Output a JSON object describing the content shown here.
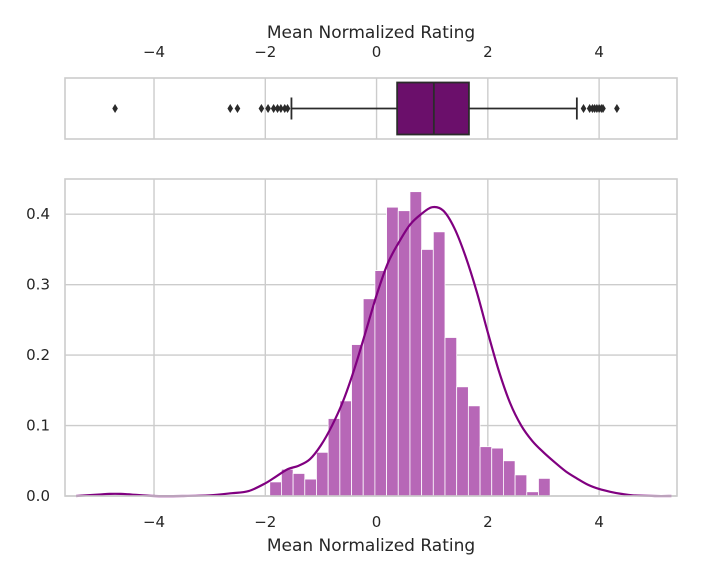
{
  "chart_data": [
    {
      "type": "box",
      "xlabel": "Mean Normalized Rating",
      "xlim": [
        -5.6,
        5.4
      ],
      "xticks": [
        -4,
        -2,
        0,
        2,
        4
      ],
      "xtick_labels": [
        "−4",
        "−2",
        "0",
        "2",
        "4"
      ],
      "grid": true,
      "box": {
        "q1": 0.37,
        "median": 1.03,
        "q3": 1.66,
        "whisker_low": -1.53,
        "whisker_high": 3.6
      },
      "outliers": [
        -4.7,
        -2.63,
        -2.5,
        -2.07,
        -1.95,
        -1.85,
        -1.78,
        -1.72,
        -1.65,
        -1.6,
        3.72,
        3.83,
        3.88,
        3.92,
        3.96,
        4.0,
        4.04,
        4.07,
        4.32
      ],
      "colors": {
        "box": "#6b0f6b",
        "edge": "#2b2b2b"
      }
    },
    {
      "type": "histogram",
      "xlabel": "Mean Normalized Rating",
      "xlim": [
        -5.6,
        5.4
      ],
      "ylim": [
        0,
        0.45
      ],
      "xticks": [
        -4,
        -2,
        0,
        2,
        4
      ],
      "xtick_labels": [
        "−4",
        "−2",
        "0",
        "2",
        "4"
      ],
      "yticks": [
        0.0,
        0.1,
        0.2,
        0.3,
        0.4
      ],
      "ytick_labels": [
        "0.0",
        "0.1",
        "0.2",
        "0.3",
        "0.4"
      ],
      "grid": true,
      "bin_start": -1.92,
      "bin_width": 0.21,
      "values": [
        0.02,
        0.038,
        0.032,
        0.024,
        0.062,
        0.11,
        0.135,
        0.215,
        0.28,
        0.32,
        0.41,
        0.405,
        0.432,
        0.35,
        0.375,
        0.225,
        0.155,
        0.128,
        0.07,
        0.068,
        0.05,
        0.03,
        0.006,
        0.025
      ],
      "kde_x": [
        -5.4,
        -5.0,
        -4.8,
        -4.6,
        -4.4,
        -4.0,
        -3.5,
        -3.0,
        -2.6,
        -2.3,
        -2.0,
        -1.8,
        -1.6,
        -1.4,
        -1.2,
        -1.0,
        -0.8,
        -0.6,
        -0.4,
        -0.2,
        0.0,
        0.2,
        0.4,
        0.6,
        0.8,
        1.0,
        1.2,
        1.4,
        1.6,
        1.8,
        2.0,
        2.2,
        2.4,
        2.6,
        2.8,
        3.0,
        3.2,
        3.4,
        3.6,
        3.8,
        4.0,
        4.2,
        4.4,
        4.6,
        5.0,
        5.3
      ],
      "kde_y": [
        0.0,
        0.002,
        0.003,
        0.003,
        0.002,
        0.0,
        0.0,
        0.001,
        0.004,
        0.007,
        0.018,
        0.028,
        0.038,
        0.043,
        0.052,
        0.072,
        0.1,
        0.135,
        0.18,
        0.232,
        0.285,
        0.33,
        0.36,
        0.385,
        0.4,
        0.41,
        0.405,
        0.38,
        0.34,
        0.29,
        0.232,
        0.177,
        0.132,
        0.1,
        0.078,
        0.062,
        0.048,
        0.035,
        0.025,
        0.016,
        0.01,
        0.006,
        0.003,
        0.001,
        0.0,
        0.0
      ],
      "colors": {
        "bar": "#b767b7",
        "bar_edge": "#ffffff",
        "kde": "#800080"
      }
    }
  ]
}
